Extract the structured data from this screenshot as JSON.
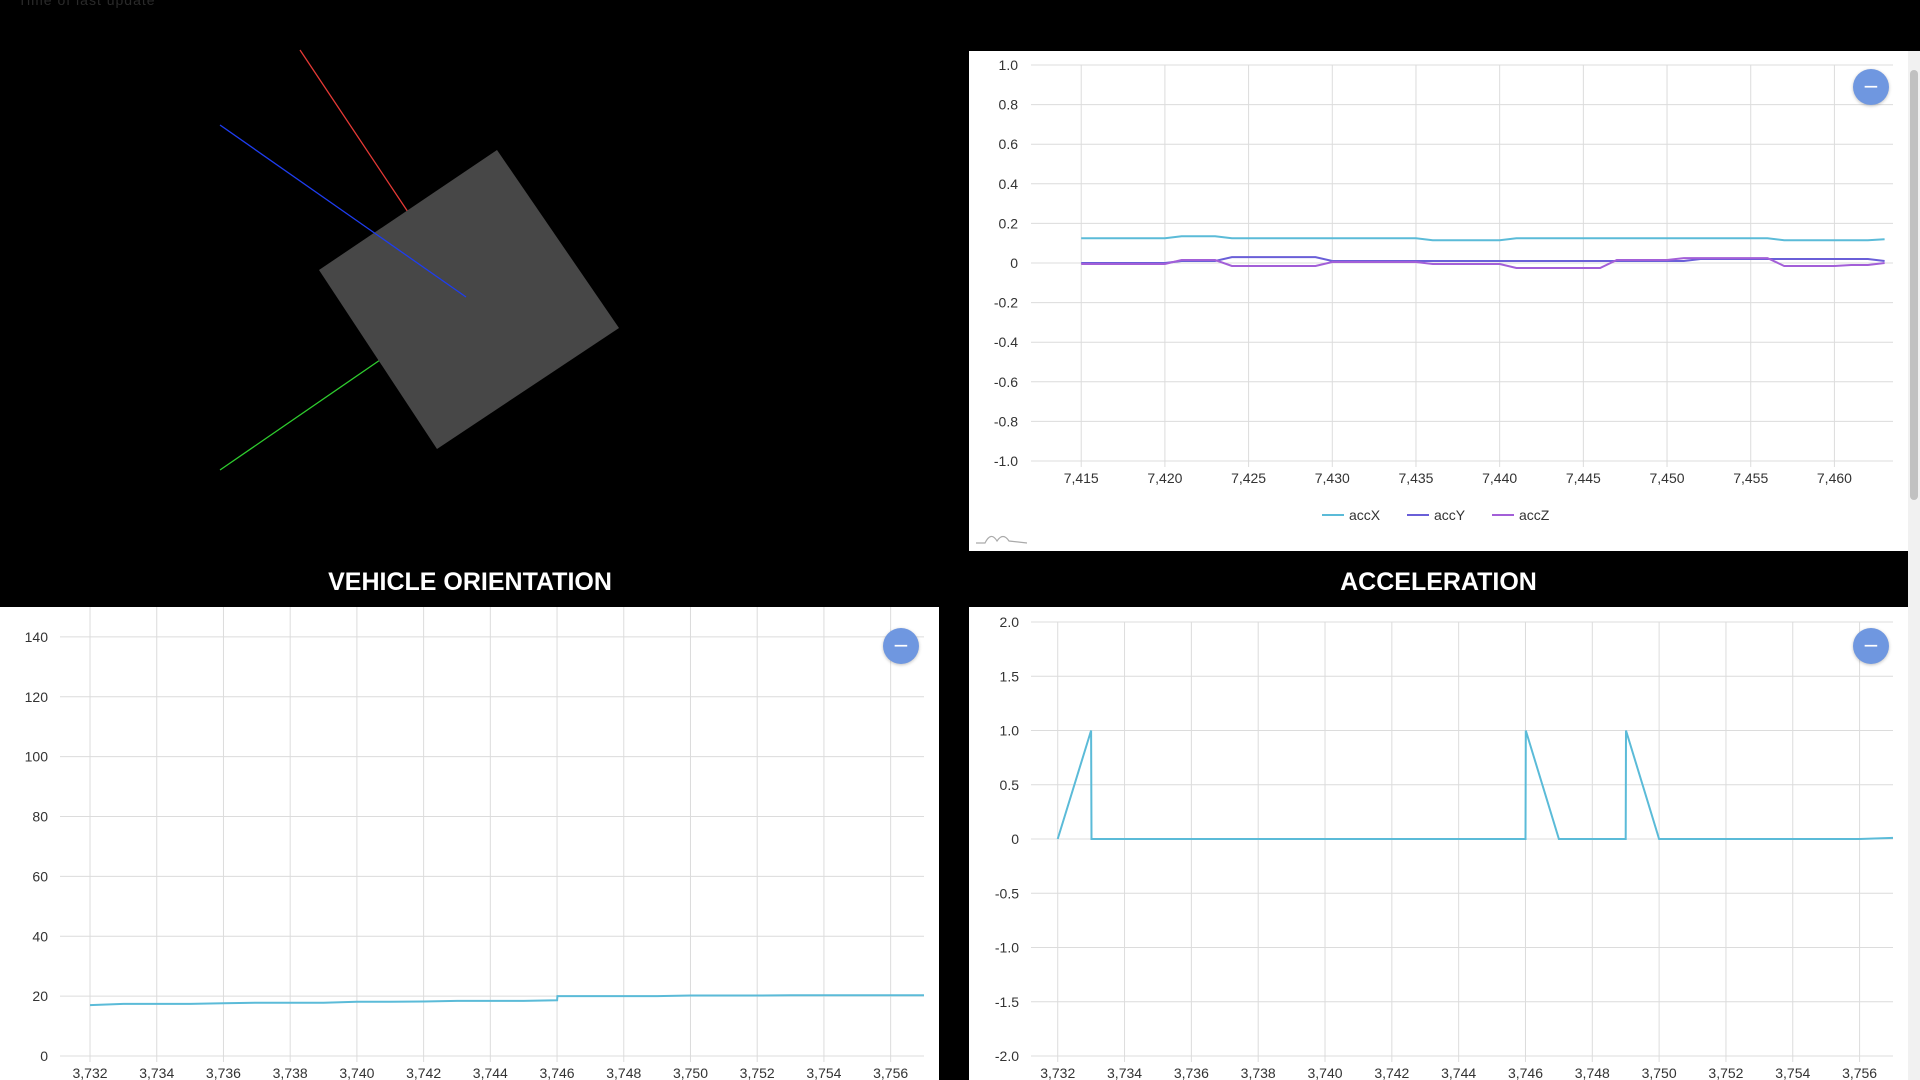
{
  "top_caption": "Time of last update",
  "panels": {
    "orientation_title": "VEHICLE ORIENTATION",
    "acceleration_title": "ACCELERATION"
  },
  "buttons": {
    "collapse_symbol": "−"
  },
  "colors": {
    "background": "#000000",
    "cube": "#474747",
    "axis_x": "#e53935",
    "axis_y": "#1e3df0",
    "axis_z": "#2ecc2e",
    "accX": "#5bbbd8",
    "accY": "#6a5fd8",
    "accZ": "#a35fd8",
    "button": "#6f97e0"
  },
  "chart_data": [
    {
      "id": "acc-xyz",
      "type": "line",
      "x": [
        7415,
        7416,
        7417,
        7418,
        7419,
        7420,
        7421,
        7422,
        7423,
        7424,
        7425,
        7426,
        7427,
        7428,
        7429,
        7430,
        7431,
        7432,
        7433,
        7434,
        7435,
        7436,
        7437,
        7438,
        7439,
        7440,
        7441,
        7442,
        7443,
        7444,
        7445,
        7446,
        7447,
        7448,
        7449,
        7450,
        7451,
        7452,
        7453,
        7454,
        7455,
        7456,
        7457,
        7458,
        7459,
        7460,
        7461,
        7462,
        7463
      ],
      "xticks": [
        "7,415",
        "7,420",
        "7,425",
        "7,430",
        "7,435",
        "7,440",
        "7,445",
        "7,450",
        "7,455",
        "7,460"
      ],
      "xtick_values": [
        7415,
        7420,
        7425,
        7430,
        7435,
        7440,
        7445,
        7450,
        7455,
        7460
      ],
      "xlim": [
        7412,
        7463.5
      ],
      "ylim": [
        -1.0,
        1.0
      ],
      "yticks": [
        "1.0",
        "0.8",
        "0.6",
        "0.4",
        "0.2",
        "0",
        "-0.2",
        "-0.4",
        "-0.6",
        "-0.8",
        "-1.0"
      ],
      "ytick_values": [
        1.0,
        0.8,
        0.6,
        0.4,
        0.2,
        0,
        -0.2,
        -0.4,
        -0.6,
        -0.8,
        -1.0
      ],
      "series": [
        {
          "name": "accX",
          "color": "#5bbbd8",
          "values": [
            0.125,
            0.125,
            0.125,
            0.125,
            0.125,
            0.125,
            0.135,
            0.135,
            0.135,
            0.125,
            0.125,
            0.125,
            0.125,
            0.125,
            0.125,
            0.125,
            0.125,
            0.125,
            0.125,
            0.125,
            0.125,
            0.115,
            0.115,
            0.115,
            0.115,
            0.115,
            0.125,
            0.125,
            0.125,
            0.125,
            0.125,
            0.125,
            0.125,
            0.125,
            0.125,
            0.125,
            0.125,
            0.125,
            0.125,
            0.125,
            0.125,
            0.125,
            0.115,
            0.115,
            0.115,
            0.115,
            0.115,
            0.115,
            0.12
          ]
        },
        {
          "name": "accY",
          "color": "#6a5fd8",
          "values": [
            0.0,
            0.0,
            0.0,
            0.0,
            0.0,
            0.0,
            0.01,
            0.01,
            0.01,
            0.03,
            0.03,
            0.03,
            0.03,
            0.03,
            0.03,
            0.01,
            0.01,
            0.01,
            0.01,
            0.01,
            0.01,
            0.01,
            0.01,
            0.01,
            0.01,
            0.01,
            0.01,
            0.01,
            0.01,
            0.01,
            0.01,
            0.01,
            0.01,
            0.01,
            0.01,
            0.01,
            0.01,
            0.02,
            0.02,
            0.02,
            0.02,
            0.02,
            0.02,
            0.02,
            0.02,
            0.02,
            0.02,
            0.02,
            0.01
          ]
        },
        {
          "name": "accZ",
          "color": "#a35fd8",
          "values": [
            -0.005,
            -0.005,
            -0.005,
            -0.005,
            -0.005,
            -0.005,
            0.015,
            0.015,
            0.015,
            -0.015,
            -0.015,
            -0.015,
            -0.015,
            -0.015,
            -0.015,
            0.005,
            0.005,
            0.005,
            0.005,
            0.005,
            0.005,
            -0.005,
            -0.005,
            -0.005,
            -0.005,
            -0.005,
            -0.025,
            -0.025,
            -0.025,
            -0.025,
            -0.025,
            -0.025,
            0.015,
            0.015,
            0.015,
            0.015,
            0.025,
            0.025,
            0.025,
            0.025,
            0.025,
            0.025,
            -0.015,
            -0.015,
            -0.015,
            -0.015,
            -0.01,
            -0.01,
            0.0
          ]
        }
      ],
      "legend": "bottom-center",
      "grid": true
    },
    {
      "id": "orientation",
      "type": "line",
      "x": [
        3732,
        3733,
        3734,
        3735,
        3736,
        3737,
        3738,
        3739,
        3740,
        3741,
        3742,
        3743,
        3744,
        3745,
        3746,
        3746.01,
        3747,
        3748,
        3749,
        3750,
        3751,
        3752,
        3753,
        3754,
        3755,
        3756,
        3757
      ],
      "xticks": [
        "3,732",
        "3,734",
        "3,736",
        "3,738",
        "3,740",
        "3,742",
        "3,744",
        "3,746",
        "3,748",
        "3,750",
        "3,752",
        "3,754",
        "3,756"
      ],
      "xtick_values": [
        3732,
        3734,
        3736,
        3738,
        3740,
        3742,
        3744,
        3746,
        3748,
        3750,
        3752,
        3754,
        3756
      ],
      "xlim": [
        3731.1,
        3757.0
      ],
      "ylim": [
        0,
        150
      ],
      "yticks": [
        "140",
        "120",
        "100",
        "80",
        "60",
        "40",
        "20",
        "0"
      ],
      "ytick_values": [
        140,
        120,
        100,
        80,
        60,
        40,
        20,
        0
      ],
      "series": [
        {
          "name": "",
          "color": "#5bbbd8",
          "values": [
            17,
            17.4,
            17.4,
            17.4,
            17.6,
            17.8,
            17.8,
            17.8,
            18.1,
            18.1,
            18.2,
            18.4,
            18.4,
            18.4,
            18.6,
            20,
            20,
            20,
            20,
            20.2,
            20.2,
            20.2,
            20.3,
            20.3,
            20.3,
            20.3,
            20.3
          ]
        }
      ],
      "grid": true
    },
    {
      "id": "acceleration",
      "type": "line",
      "x": [
        3732,
        3733,
        3733.01,
        3746,
        3746.01,
        3747,
        3749,
        3749.01,
        3750,
        3756,
        3757
      ],
      "xticks": [
        "3,732",
        "3,734",
        "3,736",
        "3,738",
        "3,740",
        "3,742",
        "3,744",
        "3,746",
        "3,748",
        "3,750",
        "3,752",
        "3,754",
        "3,756"
      ],
      "xtick_values": [
        3732,
        3734,
        3736,
        3738,
        3740,
        3742,
        3744,
        3746,
        3748,
        3750,
        3752,
        3754,
        3756
      ],
      "xlim": [
        3731.2,
        3757.0
      ],
      "ylim": [
        -2.0,
        2.0
      ],
      "yticks": [
        "2.0",
        "1.5",
        "1.0",
        "0.5",
        "0",
        "-0.5",
        "-1.0",
        "-1.5",
        "-2.0"
      ],
      "ytick_values": [
        2.0,
        1.5,
        1.0,
        0.5,
        0,
        -0.5,
        -1.0,
        -1.5,
        -2.0
      ],
      "series": [
        {
          "name": "",
          "color": "#5bbbd8",
          "values": [
            0,
            1,
            0,
            0,
            1,
            0,
            0,
            1,
            0,
            0,
            0.01
          ]
        }
      ],
      "grid": true
    }
  ]
}
